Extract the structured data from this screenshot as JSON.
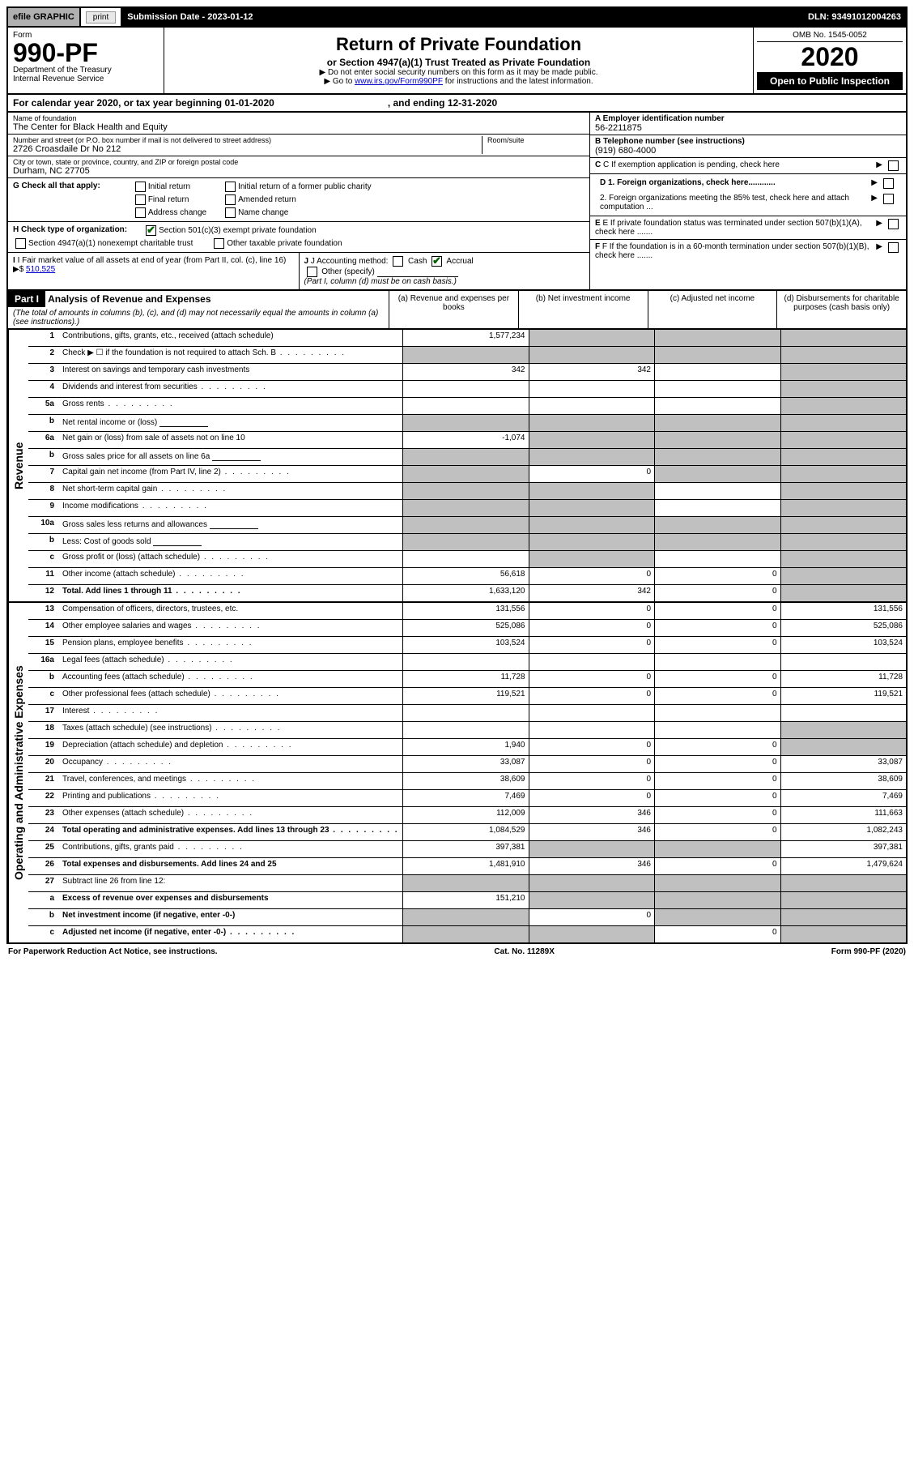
{
  "top": {
    "efile": "efile GRAPHIC",
    "print": "print",
    "submission": "Submission Date - 2023-01-12",
    "dln": "DLN: 93491012004263"
  },
  "header": {
    "form_label": "Form",
    "form_no": "990-PF",
    "dept": "Department of the Treasury",
    "irs": "Internal Revenue Service",
    "title": "Return of Private Foundation",
    "subtitle": "or Section 4947(a)(1) Trust Treated as Private Foundation",
    "instr1": "▶ Do not enter social security numbers on this form as it may be made public.",
    "instr2_pre": "▶ Go to ",
    "instr2_link": "www.irs.gov/Form990PF",
    "instr2_post": " for instructions and the latest information.",
    "omb": "OMB No. 1545-0052",
    "year": "2020",
    "open": "Open to Public Inspection"
  },
  "calyear": {
    "text": "For calendar year 2020, or tax year beginning 01-01-2020",
    "ending": ", and ending 12-31-2020"
  },
  "entity": {
    "name_label": "Name of foundation",
    "name": "The Center for Black Health and Equity",
    "addr_label": "Number and street (or P.O. box number if mail is not delivered to street address)",
    "addr": "2726 Croasdaile Dr No 212",
    "room_label": "Room/suite",
    "city_label": "City or town, state or province, country, and ZIP or foreign postal code",
    "city": "Durham, NC  27705",
    "ein_label": "A Employer identification number",
    "ein": "56-2211875",
    "tel_label": "B Telephone number (see instructions)",
    "tel": "(919) 680-4000",
    "c_label": "C If exemption application is pending, check here",
    "d1": "D 1. Foreign organizations, check here............",
    "d2": "2. Foreign organizations meeting the 85% test, check here and attach computation ...",
    "e": "E If private foundation status was terminated under section 507(b)(1)(A), check here .......",
    "f": "F If the foundation is in a 60-month termination under section 507(b)(1)(B), check here .......",
    "g_label": "G Check all that apply:",
    "g_opts": [
      "Initial return",
      "Initial return of a former public charity",
      "Final return",
      "Amended return",
      "Address change",
      "Name change"
    ],
    "h_label": "H Check type of organization:",
    "h_501c3": "Section 501(c)(3) exempt private foundation",
    "h_4947": "Section 4947(a)(1) nonexempt charitable trust",
    "h_other": "Other taxable private foundation",
    "i_label": "I Fair market value of all assets at end of year (from Part II, col. (c), line 16)",
    "i_val": "510,525",
    "j_label": "J Accounting method:",
    "j_cash": "Cash",
    "j_accrual": "Accrual",
    "j_other": "Other (specify)",
    "j_note": "(Part I, column (d) must be on cash basis.)"
  },
  "part1": {
    "label": "Part I",
    "title": "Analysis of Revenue and Expenses",
    "note": "(The total of amounts in columns (b), (c), and (d) may not necessarily equal the amounts in column (a) (see instructions).)",
    "cols": {
      "a": "(a) Revenue and expenses per books",
      "b": "(b) Net investment income",
      "c": "(c) Adjusted net income",
      "d": "(d) Disbursements for charitable purposes (cash basis only)"
    }
  },
  "sections": {
    "revenue": "Revenue",
    "expenses": "Operating and Administrative Expenses"
  },
  "rows": [
    {
      "ln": "1",
      "desc": "Contributions, gifts, grants, etc., received (attach schedule)",
      "a": "1,577,234",
      "b": "",
      "c": "",
      "d": "",
      "shade": [
        "b",
        "c",
        "d"
      ]
    },
    {
      "ln": "2",
      "desc": "Check ▶ ☐ if the foundation is not required to attach Sch. B",
      "a": "",
      "b": "",
      "c": "",
      "d": "",
      "shade": [
        "a",
        "b",
        "c",
        "d"
      ],
      "dotted": true
    },
    {
      "ln": "3",
      "desc": "Interest on savings and temporary cash investments",
      "a": "342",
      "b": "342",
      "c": "",
      "d": "",
      "shade": [
        "d"
      ]
    },
    {
      "ln": "4",
      "desc": "Dividends and interest from securities",
      "a": "",
      "b": "",
      "c": "",
      "d": "",
      "shade": [
        "d"
      ],
      "dotted": true
    },
    {
      "ln": "5a",
      "desc": "Gross rents",
      "a": "",
      "b": "",
      "c": "",
      "d": "",
      "shade": [
        "d"
      ],
      "dotted": true
    },
    {
      "ln": "b",
      "desc": "Net rental income or (loss)",
      "a": "",
      "b": "",
      "c": "",
      "d": "",
      "shade": [
        "a",
        "b",
        "c",
        "d"
      ],
      "mini": true
    },
    {
      "ln": "6a",
      "desc": "Net gain or (loss) from sale of assets not on line 10",
      "a": "-1,074",
      "b": "",
      "c": "",
      "d": "",
      "shade": [
        "b",
        "c",
        "d"
      ]
    },
    {
      "ln": "b",
      "desc": "Gross sales price for all assets on line 6a",
      "a": "",
      "b": "",
      "c": "",
      "d": "",
      "shade": [
        "a",
        "b",
        "c",
        "d"
      ],
      "mini": true
    },
    {
      "ln": "7",
      "desc": "Capital gain net income (from Part IV, line 2)",
      "a": "",
      "b": "0",
      "c": "",
      "d": "",
      "shade": [
        "a",
        "c",
        "d"
      ],
      "dotted": true
    },
    {
      "ln": "8",
      "desc": "Net short-term capital gain",
      "a": "",
      "b": "",
      "c": "",
      "d": "",
      "shade": [
        "a",
        "b",
        "d"
      ],
      "dotted": true
    },
    {
      "ln": "9",
      "desc": "Income modifications",
      "a": "",
      "b": "",
      "c": "",
      "d": "",
      "shade": [
        "a",
        "b",
        "d"
      ],
      "dotted": true
    },
    {
      "ln": "10a",
      "desc": "Gross sales less returns and allowances",
      "a": "",
      "b": "",
      "c": "",
      "d": "",
      "shade": [
        "a",
        "b",
        "c",
        "d"
      ],
      "mini": true
    },
    {
      "ln": "b",
      "desc": "Less: Cost of goods sold",
      "a": "",
      "b": "",
      "c": "",
      "d": "",
      "shade": [
        "a",
        "b",
        "c",
        "d"
      ],
      "mini": true,
      "dotted": true
    },
    {
      "ln": "c",
      "desc": "Gross profit or (loss) (attach schedule)",
      "a": "",
      "b": "",
      "c": "",
      "d": "",
      "shade": [
        "b",
        "d"
      ],
      "dotted": true
    },
    {
      "ln": "11",
      "desc": "Other income (attach schedule)",
      "a": "56,618",
      "b": "0",
      "c": "0",
      "d": "",
      "shade": [
        "d"
      ],
      "dotted": true
    },
    {
      "ln": "12",
      "desc": "Total. Add lines 1 through 11",
      "a": "1,633,120",
      "b": "342",
      "c": "0",
      "d": "",
      "shade": [
        "d"
      ],
      "bold": true,
      "dotted": true
    }
  ],
  "exp_rows": [
    {
      "ln": "13",
      "desc": "Compensation of officers, directors, trustees, etc.",
      "a": "131,556",
      "b": "0",
      "c": "0",
      "d": "131,556"
    },
    {
      "ln": "14",
      "desc": "Other employee salaries and wages",
      "a": "525,086",
      "b": "0",
      "c": "0",
      "d": "525,086",
      "dotted": true
    },
    {
      "ln": "15",
      "desc": "Pension plans, employee benefits",
      "a": "103,524",
      "b": "0",
      "c": "0",
      "d": "103,524",
      "dotted": true
    },
    {
      "ln": "16a",
      "desc": "Legal fees (attach schedule)",
      "a": "",
      "b": "",
      "c": "",
      "d": "",
      "dotted": true
    },
    {
      "ln": "b",
      "desc": "Accounting fees (attach schedule)",
      "a": "11,728",
      "b": "0",
      "c": "0",
      "d": "11,728",
      "dotted": true
    },
    {
      "ln": "c",
      "desc": "Other professional fees (attach schedule)",
      "a": "119,521",
      "b": "0",
      "c": "0",
      "d": "119,521",
      "dotted": true
    },
    {
      "ln": "17",
      "desc": "Interest",
      "a": "",
      "b": "",
      "c": "",
      "d": "",
      "dotted": true
    },
    {
      "ln": "18",
      "desc": "Taxes (attach schedule) (see instructions)",
      "a": "",
      "b": "",
      "c": "",
      "d": "",
      "shade": [
        "d"
      ],
      "dotted": true
    },
    {
      "ln": "19",
      "desc": "Depreciation (attach schedule) and depletion",
      "a": "1,940",
      "b": "0",
      "c": "0",
      "d": "",
      "shade": [
        "d"
      ],
      "dotted": true
    },
    {
      "ln": "20",
      "desc": "Occupancy",
      "a": "33,087",
      "b": "0",
      "c": "0",
      "d": "33,087",
      "dotted": true
    },
    {
      "ln": "21",
      "desc": "Travel, conferences, and meetings",
      "a": "38,609",
      "b": "0",
      "c": "0",
      "d": "38,609",
      "dotted": true
    },
    {
      "ln": "22",
      "desc": "Printing and publications",
      "a": "7,469",
      "b": "0",
      "c": "0",
      "d": "7,469",
      "dotted": true
    },
    {
      "ln": "23",
      "desc": "Other expenses (attach schedule)",
      "a": "112,009",
      "b": "346",
      "c": "0",
      "d": "111,663",
      "dotted": true
    },
    {
      "ln": "24",
      "desc": "Total operating and administrative expenses. Add lines 13 through 23",
      "a": "1,084,529",
      "b": "346",
      "c": "0",
      "d": "1,082,243",
      "bold": true,
      "dotted": true
    },
    {
      "ln": "25",
      "desc": "Contributions, gifts, grants paid",
      "a": "397,381",
      "b": "",
      "c": "",
      "d": "397,381",
      "shade": [
        "b",
        "c"
      ],
      "dotted": true
    },
    {
      "ln": "26",
      "desc": "Total expenses and disbursements. Add lines 24 and 25",
      "a": "1,481,910",
      "b": "346",
      "c": "0",
      "d": "1,479,624",
      "bold": true
    },
    {
      "ln": "27",
      "desc": "Subtract line 26 from line 12:",
      "a": "",
      "b": "",
      "c": "",
      "d": "",
      "shade": [
        "a",
        "b",
        "c",
        "d"
      ]
    },
    {
      "ln": "a",
      "desc": "Excess of revenue over expenses and disbursements",
      "a": "151,210",
      "b": "",
      "c": "",
      "d": "",
      "shade": [
        "b",
        "c",
        "d"
      ],
      "bold": true
    },
    {
      "ln": "b",
      "desc": "Net investment income (if negative, enter -0-)",
      "a": "",
      "b": "0",
      "c": "",
      "d": "",
      "shade": [
        "a",
        "c",
        "d"
      ],
      "bold": true
    },
    {
      "ln": "c",
      "desc": "Adjusted net income (if negative, enter -0-)",
      "a": "",
      "b": "",
      "c": "0",
      "d": "",
      "shade": [
        "a",
        "b",
        "d"
      ],
      "bold": true,
      "dotted": true
    }
  ],
  "footer": {
    "left": "For Paperwork Reduction Act Notice, see instructions.",
    "center": "Cat. No. 11289X",
    "right": "Form 990-PF (2020)"
  }
}
